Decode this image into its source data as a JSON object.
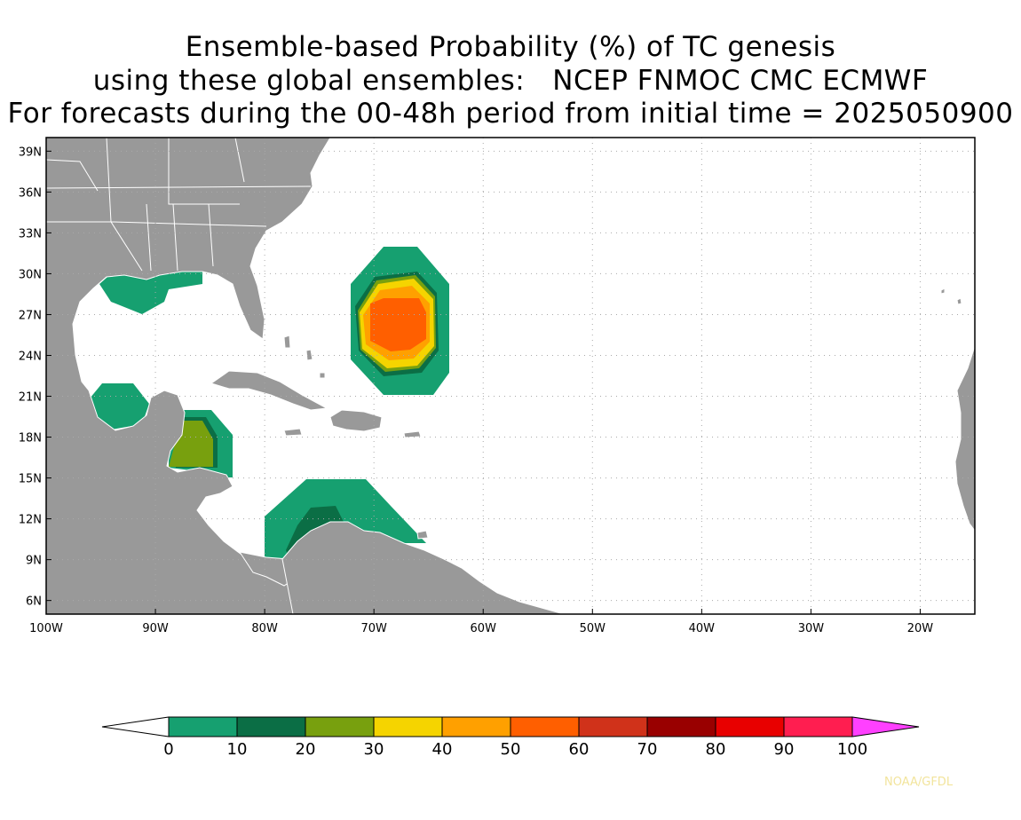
{
  "title": {
    "line1": "Ensemble-based Probability (%) of TC genesis",
    "line2": "using these global ensembles:   NCEP FNMOC CMC ECMWF",
    "line3": "For forecasts during the 00-48h period from initial time = 2025050900"
  },
  "map": {
    "lon_range": [
      -100,
      -15
    ],
    "lat_range": [
      5,
      40
    ],
    "lat_ticks": [
      {
        "value": 39,
        "label": "39N"
      },
      {
        "value": 36,
        "label": "36N"
      },
      {
        "value": 33,
        "label": "33N"
      },
      {
        "value": 30,
        "label": "30N"
      },
      {
        "value": 27,
        "label": "27N"
      },
      {
        "value": 24,
        "label": "24N"
      },
      {
        "value": 21,
        "label": "21N"
      },
      {
        "value": 18,
        "label": "18N"
      },
      {
        "value": 15,
        "label": "15N"
      },
      {
        "value": 12,
        "label": "12N"
      },
      {
        "value": 9,
        "label": "9N"
      },
      {
        "value": 6,
        "label": "6N"
      }
    ],
    "lon_ticks": [
      {
        "value": -100,
        "label": "100W"
      },
      {
        "value": -90,
        "label": "90W"
      },
      {
        "value": -80,
        "label": "80W"
      },
      {
        "value": -70,
        "label": "70W"
      },
      {
        "value": -60,
        "label": "60W"
      },
      {
        "value": -50,
        "label": "50W"
      },
      {
        "value": -40,
        "label": "40W"
      },
      {
        "value": -30,
        "label": "30W"
      },
      {
        "value": -20,
        "label": "20W"
      }
    ],
    "land_color": "#999999",
    "grid": true
  },
  "colorbar": {
    "levels": [
      "0",
      "10",
      "20",
      "30",
      "40",
      "50",
      "60",
      "70",
      "80",
      "90",
      "100"
    ],
    "colors": [
      "#16a070",
      "#0b6e45",
      "#78a00e",
      "#f5d400",
      "#ffa000",
      "#ff5f00",
      "#d0321a",
      "#990000",
      "#e80000",
      "#ff1e50"
    ],
    "under_color": "#ffffff",
    "over_color": "#ff40ff"
  },
  "credit": "NOAA/GFDL"
}
